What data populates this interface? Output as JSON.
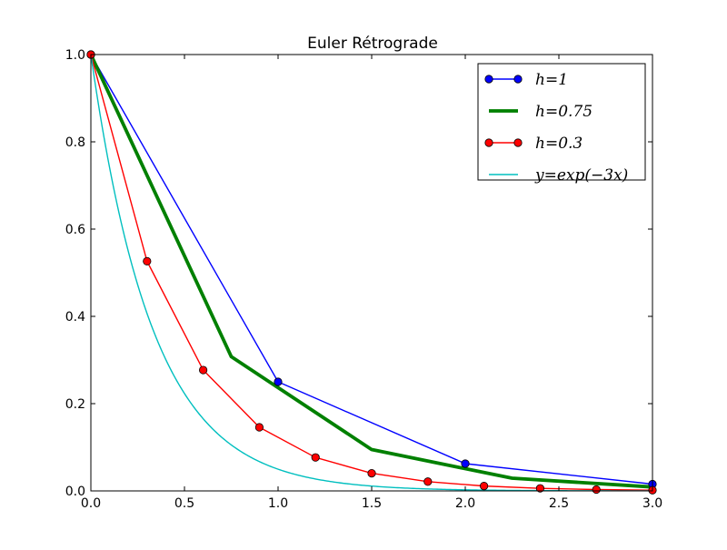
{
  "chart_data": {
    "type": "line",
    "title": "Euler Rétrograde",
    "xlabel": "",
    "ylabel": "",
    "xlim": [
      0.0,
      3.0
    ],
    "ylim": [
      0.0,
      1.0
    ],
    "xticks": [
      "0.0",
      "0.5",
      "1.0",
      "1.5",
      "2.0",
      "2.5",
      "3.0"
    ],
    "yticks": [
      "0.0",
      "0.2",
      "0.4",
      "0.6",
      "0.8",
      "1.0"
    ],
    "xtick_values": [
      0.0,
      0.5,
      1.0,
      1.5,
      2.0,
      2.5,
      3.0
    ],
    "ytick_values": [
      0.0,
      0.2,
      0.4,
      0.6,
      0.8,
      1.0
    ],
    "grid": false,
    "legend_position": "top-right",
    "series": [
      {
        "name": "h=1",
        "color": "#0000ff",
        "marker": "circle",
        "line_width": "thin",
        "x": [
          0,
          1,
          2,
          3
        ],
        "y": [
          1.0,
          0.25,
          0.0625,
          0.015625
        ]
      },
      {
        "name": "h=0.75",
        "color": "#008000",
        "marker": "none",
        "line_width": "thick",
        "x": [
          0,
          0.75,
          1.5,
          2.25,
          3.0
        ],
        "y": [
          1.0,
          0.3077,
          0.0947,
          0.0291,
          0.009
        ]
      },
      {
        "name": "h=0.3",
        "color": "#ff0000",
        "marker": "circle",
        "line_width": "thin",
        "x": [
          0,
          0.3,
          0.6,
          0.9,
          1.2,
          1.5,
          1.8,
          2.1,
          2.4,
          2.7,
          3.0
        ],
        "y": [
          1.0,
          0.5263,
          0.277,
          0.1458,
          0.0767,
          0.0404,
          0.0213,
          0.0112,
          0.0059,
          0.0031,
          0.0016
        ]
      },
      {
        "name": "y=exp(−3x)",
        "color": "#00bfbf",
        "marker": "none",
        "line_width": "thin",
        "function": "exp(-3x)"
      }
    ]
  }
}
